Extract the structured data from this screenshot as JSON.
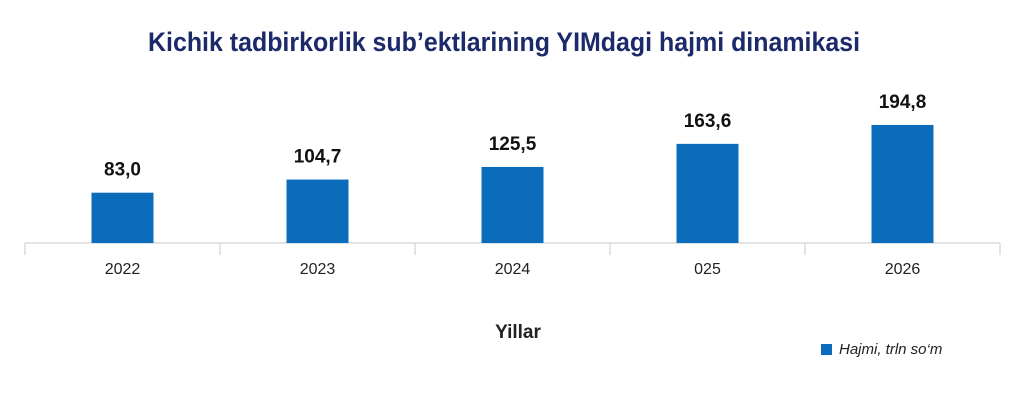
{
  "chart_data": {
    "type": "bar",
    "title": "Kichik tadbirkorlik sub’ektlarining YIMdagi hajmi dinamikasi",
    "x_label": "Yillar",
    "categories": [
      "2022",
      "2023",
      "2024",
      "025",
      "2026"
    ],
    "series": [
      {
        "name": "Hajmi, trln so‘m",
        "color": "#0b6cbc",
        "values": [
          83.0,
          104.7,
          125.5,
          163.6,
          194.8
        ],
        "value_labels": [
          "83,0",
          "104,7",
          "125,5",
          "163,6",
          "194,8"
        ]
      }
    ],
    "legend": "bottom-right"
  }
}
